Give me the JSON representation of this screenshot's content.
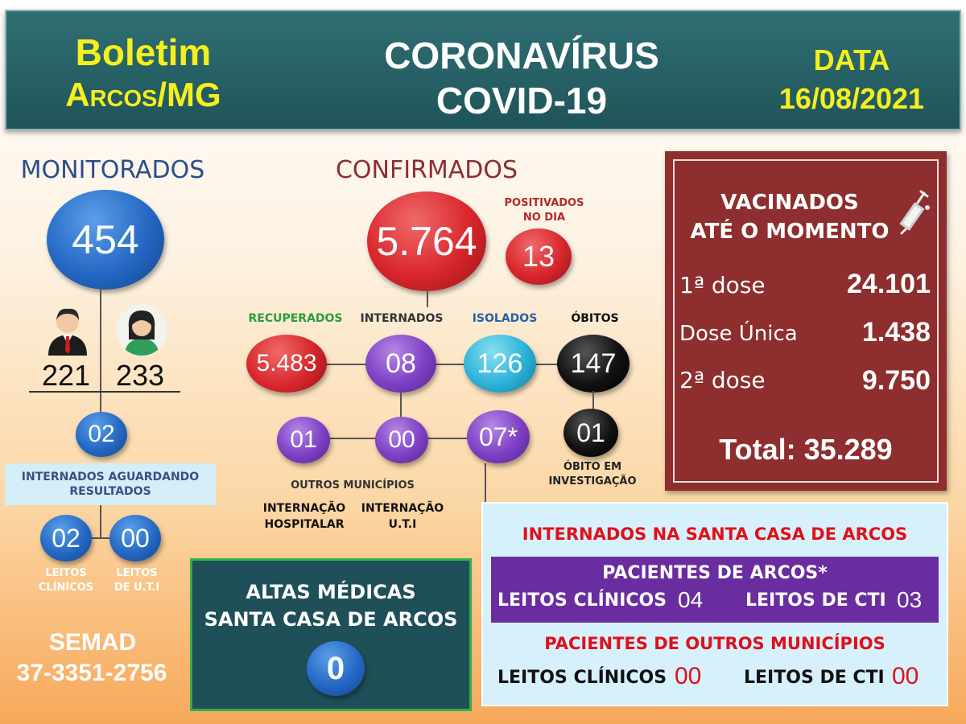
{
  "header": {
    "boletim": "Boletim",
    "cidade": "Arcos/MG",
    "title_line1": "CORONAVÍRUS",
    "title_line2": "COVID-19",
    "data_label": "DATA",
    "data_value": "16/08/2021"
  },
  "monitorados": {
    "title": "MONITORADOS",
    "total": "454",
    "homens": "221",
    "mulheres": "233",
    "aguardando": "02",
    "aguardando_label": "INTERNADOS AGUARDANDO RESULTADOS",
    "leitos_clinicos": "02",
    "leitos_uti": "00",
    "leitos_clinicos_label_1": "LEITOS",
    "leitos_clinicos_label_2": "CLÍNICOS",
    "leitos_uti_label_1": "LEITOS",
    "leitos_uti_label_2": "DE U.T.I"
  },
  "confirmados": {
    "title": "CONFIRMADOS",
    "total": "5.764",
    "positivados_label_1": "POSITIVADOS",
    "positivados_label_2": "NO DIA",
    "positivados": "13",
    "recuperados_label": "RECUPERADOS",
    "recuperados": "5.483",
    "internados_label": "INTERNADOS",
    "internados": "08",
    "isolados_label": "ISOLADOS",
    "isolados": "126",
    "obitos_label": "ÓBITOS",
    "obitos": "147",
    "outros_hosp": "01",
    "outros_uti": "00",
    "internados_arcos": "07*",
    "obito_investigacao": "01",
    "obito_investigacao_label_1": "ÓBITO EM",
    "obito_investigacao_label_2": "INVESTIGAÇÃO",
    "outros_municipios_label": "OUTROS MUNICÍPIOS",
    "internacao_hosp_label_1": "INTERNAÇÃO",
    "internacao_hosp_label_2": "HOSPITALAR",
    "internacao_uti_label_1": "INTERNAÇÃO",
    "internacao_uti_label_2": "U.T.I"
  },
  "vacinados": {
    "title_1": "VACINADOS",
    "title_2": "ATÉ O MOMENTO",
    "dose1_label": "1ª dose",
    "dose1": "24.101",
    "unica_label": "Dose Única",
    "unica": "1.438",
    "dose2_label": "2ª dose",
    "dose2": "9.750",
    "total": "Total: 35.289"
  },
  "altas": {
    "title_1": "ALTAS MÉDICAS",
    "title_2": "SANTA CASA DE ARCOS",
    "value": "0"
  },
  "santa_casa": {
    "title": "INTERNADOS NA SANTA CASA DE ARCOS",
    "arcos_title": "PACIENTES DE ARCOS*",
    "arcos_clinicos_label": "LEITOS CLÍNICOS",
    "arcos_clinicos": "04",
    "arcos_cti_label": "LEITOS DE CTI",
    "arcos_cti": "03",
    "outros_title": "PACIENTES DE OUTROS MUNICÍPIOS",
    "outros_clinicos_label": "LEITOS CLÍNICOS",
    "outros_clinicos": "00",
    "outros_cti_label": "LEITOS DE CTI",
    "outros_cti": "00"
  },
  "footer": {
    "semad": "SEMAD",
    "phone": "37-3351-2756"
  },
  "colors": {
    "header_bg": "#1f5459",
    "yellow": "#f5ef1e",
    "vac_bg": "#8e2e2e",
    "santa_red": "#e0101a",
    "purple_bar": "#6a2da0"
  }
}
